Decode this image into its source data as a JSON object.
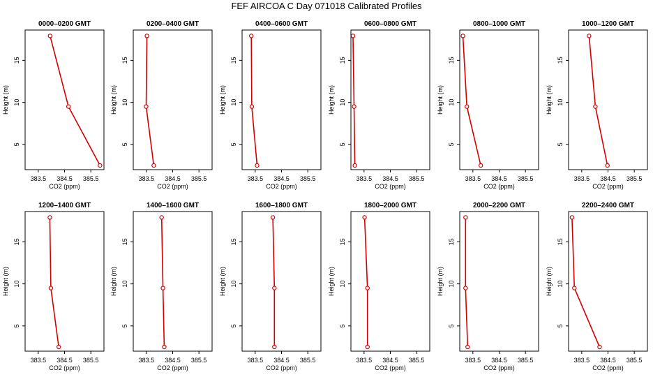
{
  "figure": {
    "title": "FEF AIRCOA C  Day 071018  Calibrated Profiles"
  },
  "chart_data": [
    {
      "type": "line",
      "title": "0000–0200 GMT",
      "xlabel": "CO2 (ppm)",
      "ylabel": "Height (m)",
      "xlim": [
        383.0,
        386.0
      ],
      "ylim": [
        2.0,
        18.6
      ],
      "xticks": [
        383.5,
        384.5,
        385.5
      ],
      "yticks": [
        5,
        10,
        15
      ],
      "x": [
        383.95,
        384.65,
        385.85
      ],
      "y": [
        17.9,
        9.5,
        2.5
      ],
      "color": "#d40000"
    },
    {
      "type": "line",
      "title": "0200–0400 GMT",
      "xlabel": "CO2 (ppm)",
      "ylabel": "Height (m)",
      "xlim": [
        383.0,
        386.0
      ],
      "ylim": [
        2.0,
        18.6
      ],
      "xticks": [
        383.5,
        384.5,
        385.5
      ],
      "yticks": [
        5,
        10,
        15
      ],
      "x": [
        383.52,
        383.49,
        383.78
      ],
      "y": [
        17.9,
        9.5,
        2.5
      ],
      "color": "#d40000"
    },
    {
      "type": "line",
      "title": "0400–0600 GMT",
      "xlabel": "CO2 (ppm)",
      "ylabel": "Height (m)",
      "xlim": [
        383.0,
        386.0
      ],
      "ylim": [
        2.0,
        18.6
      ],
      "xticks": [
        383.5,
        384.5,
        385.5
      ],
      "yticks": [
        5,
        10,
        15
      ],
      "x": [
        383.35,
        383.37,
        383.57
      ],
      "y": [
        17.9,
        9.5,
        2.5
      ],
      "color": "#d40000"
    },
    {
      "type": "line",
      "title": "0600–0800 GMT",
      "xlabel": "CO2 (ppm)",
      "ylabel": "Height (m)",
      "xlim": [
        383.0,
        386.0
      ],
      "ylim": [
        2.0,
        18.6
      ],
      "xticks": [
        383.5,
        384.5,
        385.5
      ],
      "yticks": [
        5,
        10,
        15
      ],
      "x": [
        383.08,
        383.12,
        383.15
      ],
      "y": [
        17.9,
        9.5,
        2.5
      ],
      "color": "#d40000"
    },
    {
      "type": "line",
      "title": "0800–1000 GMT",
      "xlabel": "CO2 (ppm)",
      "ylabel": "Height (m)",
      "xlim": [
        383.0,
        386.0
      ],
      "ylim": [
        2.0,
        18.6
      ],
      "xticks": [
        383.5,
        384.5,
        385.5
      ],
      "yticks": [
        5,
        10,
        15
      ],
      "x": [
        383.12,
        383.27,
        383.8
      ],
      "y": [
        17.9,
        9.5,
        2.5
      ],
      "color": "#d40000"
    },
    {
      "type": "line",
      "title": "1000–1200 GMT",
      "xlabel": "CO2 (ppm)",
      "ylabel": "Height (m)",
      "xlim": [
        383.0,
        386.0
      ],
      "ylim": [
        2.0,
        18.6
      ],
      "xticks": [
        383.5,
        384.5,
        385.5
      ],
      "yticks": [
        5,
        10,
        15
      ],
      "x": [
        383.78,
        384.02,
        384.48
      ],
      "y": [
        17.9,
        9.5,
        2.5
      ],
      "color": "#d40000"
    },
    {
      "type": "line",
      "title": "1200–1400 GMT",
      "xlabel": "CO2 (ppm)",
      "ylabel": "Height (m)",
      "xlim": [
        383.0,
        386.0
      ],
      "ylim": [
        2.0,
        18.6
      ],
      "xticks": [
        383.5,
        384.5,
        385.5
      ],
      "yticks": [
        5,
        10,
        15
      ],
      "x": [
        383.94,
        383.98,
        384.28
      ],
      "y": [
        17.9,
        9.5,
        2.5
      ],
      "color": "#d40000"
    },
    {
      "type": "line",
      "title": "1400–1600 GMT",
      "xlabel": "CO2 (ppm)",
      "ylabel": "Height (m)",
      "xlim": [
        383.0,
        386.0
      ],
      "ylim": [
        2.0,
        18.6
      ],
      "xticks": [
        383.5,
        384.5,
        385.5
      ],
      "yticks": [
        5,
        10,
        15
      ],
      "x": [
        384.08,
        384.13,
        384.18
      ],
      "y": [
        17.9,
        9.5,
        2.5
      ],
      "color": "#d40000"
    },
    {
      "type": "line",
      "title": "1600–1800 GMT",
      "xlabel": "CO2 (ppm)",
      "ylabel": "Height (m)",
      "xlim": [
        383.0,
        386.0
      ],
      "ylim": [
        2.0,
        18.6
      ],
      "xticks": [
        383.5,
        384.5,
        385.5
      ],
      "yticks": [
        5,
        10,
        15
      ],
      "x": [
        384.17,
        384.23,
        384.23
      ],
      "y": [
        17.9,
        9.5,
        2.5
      ],
      "color": "#d40000"
    },
    {
      "type": "line",
      "title": "1800–2000 GMT",
      "xlabel": "CO2 (ppm)",
      "ylabel": "Height (m)",
      "xlim": [
        383.0,
        386.0
      ],
      "ylim": [
        2.0,
        18.6
      ],
      "xticks": [
        383.5,
        384.5,
        385.5
      ],
      "yticks": [
        5,
        10,
        15
      ],
      "x": [
        383.52,
        383.63,
        383.63
      ],
      "y": [
        17.9,
        9.5,
        2.5
      ],
      "color": "#d40000"
    },
    {
      "type": "line",
      "title": "2000–2200 GMT",
      "xlabel": "CO2 (ppm)",
      "ylabel": "Height (m)",
      "xlim": [
        383.0,
        386.0
      ],
      "ylim": [
        2.0,
        18.6
      ],
      "xticks": [
        383.5,
        384.5,
        385.5
      ],
      "yticks": [
        5,
        10,
        15
      ],
      "x": [
        383.22,
        383.22,
        383.3
      ],
      "y": [
        17.9,
        9.5,
        2.5
      ],
      "color": "#d40000"
    },
    {
      "type": "line",
      "title": "2200–2400 GMT",
      "xlabel": "CO2 (ppm)",
      "ylabel": "Height (m)",
      "xlim": [
        383.0,
        386.0
      ],
      "ylim": [
        2.0,
        18.6
      ],
      "xticks": [
        383.5,
        384.5,
        385.5
      ],
      "yticks": [
        5,
        10,
        15
      ],
      "x": [
        383.13,
        383.22,
        384.18
      ],
      "y": [
        17.9,
        9.5,
        2.5
      ],
      "color": "#d40000"
    }
  ]
}
